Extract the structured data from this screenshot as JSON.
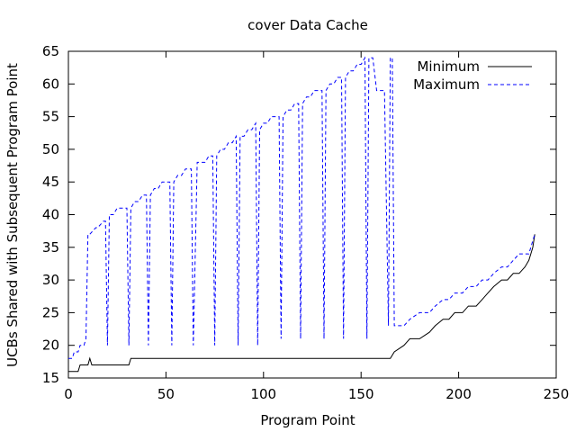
{
  "chart_data": {
    "type": "line",
    "title": "cover Data Cache",
    "xlabel": "Program Point",
    "ylabel": "UCBs Shared with Subsequent Program Point",
    "xlim": [
      0,
      250
    ],
    "ylim": [
      15,
      65
    ],
    "xticks": [
      0,
      50,
      100,
      150,
      200,
      250
    ],
    "yticks": [
      15,
      20,
      25,
      30,
      35,
      40,
      45,
      50,
      55,
      60,
      65
    ],
    "legend_position": "top-right",
    "grid": false,
    "series": [
      {
        "name": "Minimum",
        "style": "solid",
        "color": "#000000",
        "x": [
          0,
          5,
          6,
          10,
          11,
          12,
          31,
          32,
          165,
          167,
          172,
          175,
          180,
          185,
          188,
          192,
          195,
          198,
          202,
          205,
          209,
          212,
          215,
          218,
          222,
          225,
          228,
          231,
          234,
          236,
          237,
          238,
          239
        ],
        "y": [
          16,
          16,
          17,
          17,
          18,
          17,
          17,
          18,
          18,
          19,
          20,
          21,
          21,
          22,
          23,
          24,
          24,
          25,
          25,
          26,
          26,
          27,
          28,
          29,
          30,
          30,
          31,
          31,
          32,
          33,
          34,
          35,
          37
        ]
      },
      {
        "name": "Maximum",
        "style": "dashed",
        "color": "#0000ff",
        "x": [
          0,
          2,
          3,
          5,
          6,
          8,
          9,
          10,
          11,
          14,
          15,
          18,
          19,
          20,
          21,
          22,
          23,
          25,
          26,
          28,
          30,
          31,
          32,
          34,
          36,
          38,
          40,
          41,
          42,
          44,
          46,
          48,
          50,
          52,
          53,
          54,
          56,
          58,
          60,
          62,
          63,
          64,
          66,
          68,
          70,
          72,
          74,
          75,
          76,
          78,
          80,
          82,
          84,
          86,
          87,
          88,
          90,
          92,
          94,
          96,
          97,
          98,
          100,
          102,
          104,
          106,
          108,
          109,
          110,
          112,
          114,
          116,
          118,
          119,
          120,
          122,
          124,
          126,
          128,
          130,
          131,
          132,
          134,
          136,
          138,
          140,
          141,
          142,
          144,
          146,
          148,
          150,
          152,
          153,
          154,
          156,
          158,
          160,
          162,
          164,
          165,
          166,
          167,
          168,
          172,
          175,
          180,
          185,
          188,
          192,
          195,
          198,
          202,
          205,
          209,
          212,
          215,
          218,
          222,
          225,
          228,
          231,
          234,
          236,
          237,
          238,
          239
        ],
        "y": [
          18,
          18,
          19,
          19,
          20,
          20,
          21,
          37,
          37,
          38,
          38,
          39,
          39,
          20,
          40,
          40,
          40,
          41,
          41,
          41,
          41,
          20,
          41,
          42,
          42,
          43,
          43,
          20,
          43,
          44,
          44,
          45,
          45,
          45,
          20,
          45,
          46,
          46,
          47,
          47,
          47,
          20,
          48,
          48,
          48,
          49,
          49,
          20,
          49,
          50,
          50,
          51,
          51,
          52,
          20,
          52,
          52,
          53,
          53,
          54,
          20,
          53,
          54,
          54,
          55,
          55,
          55,
          21,
          55,
          56,
          56,
          57,
          57,
          21,
          57,
          58,
          58,
          59,
          59,
          59,
          21,
          59,
          60,
          60,
          61,
          61,
          21,
          61,
          62,
          62,
          63,
          63,
          64,
          21,
          64,
          64,
          59,
          59,
          59,
          23,
          64,
          64,
          23,
          23,
          23,
          24,
          25,
          25,
          26,
          27,
          27,
          28,
          28,
          29,
          29,
          30,
          30,
          31,
          32,
          32,
          33,
          34,
          34,
          34,
          35,
          36,
          37
        ]
      }
    ]
  }
}
